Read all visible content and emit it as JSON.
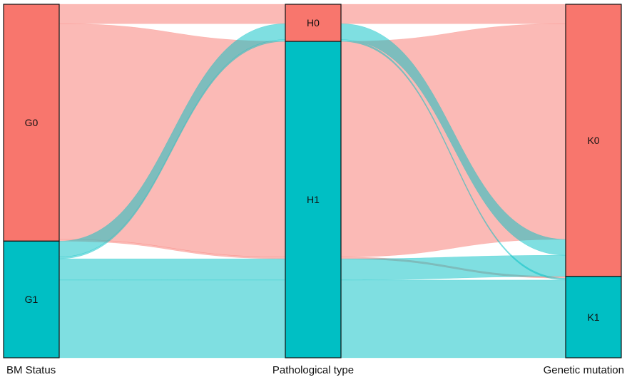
{
  "chart_data": {
    "type": "sankey",
    "title": "",
    "axes": [
      {
        "name": "BM Status",
        "categories": [
          "G0",
          "G1"
        ]
      },
      {
        "name": "Pathological type",
        "categories": [
          "H0",
          "H1"
        ]
      },
      {
        "name": "Genetic mutation",
        "categories": [
          "K0",
          "K1"
        ]
      }
    ],
    "category_colors": {
      "G0": "#F8766D",
      "H0": "#F8766D",
      "K0": "#F8766D",
      "G1": "#00BFC4",
      "H1": "#00BFC4",
      "K1": "#00BFC4"
    },
    "flows": [
      {
        "path": [
          "G0",
          "H0",
          "K0"
        ],
        "value": 5.5
      },
      {
        "path": [
          "G0",
          "H1",
          "K0"
        ],
        "value": 61
      },
      {
        "path": [
          "G0",
          "H1",
          "K1"
        ],
        "value": 0.5
      },
      {
        "path": [
          "G1",
          "H0",
          "K0"
        ],
        "value": 4.5
      },
      {
        "path": [
          "G1",
          "H0",
          "K1"
        ],
        "value": 0.5
      },
      {
        "path": [
          "G1",
          "H1",
          "K0"
        ],
        "value": 6
      },
      {
        "path": [
          "G1",
          "H1",
          "K1"
        ],
        "value": 22
      }
    ],
    "notes": "alluvial plot; flow widths estimated proportionally from band heights"
  },
  "colors": {
    "salmon": "#F8766D",
    "teal": "#00BFC4"
  }
}
